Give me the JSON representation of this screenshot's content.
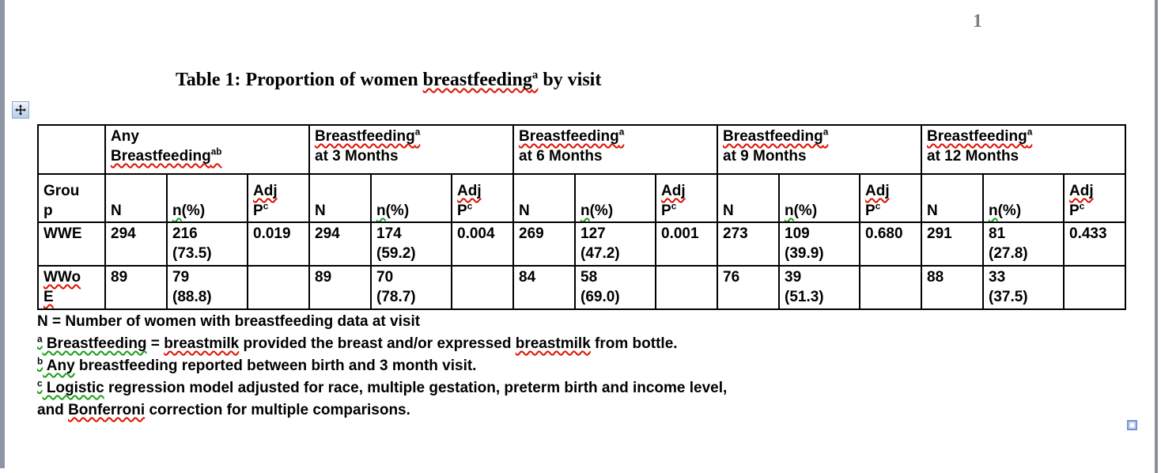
{
  "page": {
    "number": "1"
  },
  "title": {
    "prefix": "Table 1: Proportion of women ",
    "word": "breastfeeding",
    "sup": "a",
    "suffix": " by visit"
  },
  "table": {
    "group_label": "Group",
    "groups": [
      {
        "prefix": "Any",
        "word": "Breastfeeding",
        "sup": "ab",
        "suffix": ""
      },
      {
        "prefix": "",
        "word": "Breastfeeding",
        "sup": "a",
        "suffix": "at 3 Months"
      },
      {
        "prefix": "",
        "word": "Breastfeeding",
        "sup": "a",
        "suffix": "at 6 Months"
      },
      {
        "prefix": "",
        "word": "Breastfeeding",
        "sup": "a",
        "suffix": "at 9 Months"
      },
      {
        "prefix": "",
        "word": "Breastfeeding",
        "sup": "a",
        "suffix": "at 12 Months"
      }
    ],
    "subheader": {
      "n": "N",
      "n_pct_n": "n",
      "n_pct_rest": "(%)",
      "adj": "Adj",
      "p": "P",
      "p_sup": "c"
    },
    "rows": [
      {
        "label": "WWE",
        "cells": [
          "294",
          "216 (73.5)",
          "0.019",
          "294",
          "174 (59.2)",
          "0.004",
          "269",
          "127 (47.2)",
          "0.001",
          "273",
          "109 (39.9)",
          "0.680",
          "291",
          "81 (27.8)",
          "0.433"
        ]
      },
      {
        "label": "WWoE",
        "cells": [
          "89",
          "79 (88.8)",
          "",
          "89",
          "70 (78.7)",
          "",
          "84",
          "58 (69.0)",
          "",
          "76",
          "39 (51.3)",
          "",
          "88",
          "33 (37.5)",
          ""
        ]
      }
    ]
  },
  "footnotes": [
    [
      {
        "t": "N = Number of women with breastfeeding data at visit"
      }
    ],
    [
      {
        "t": "a",
        "sup": true,
        "s": "green"
      },
      {
        "t": " Breastfeeding",
        "s": "green"
      },
      {
        "t": " = "
      },
      {
        "t": "breastmilk",
        "s": "red"
      },
      {
        "t": " provided the breast and/or expressed "
      },
      {
        "t": "breastmilk",
        "s": "red"
      },
      {
        "t": " from bottle."
      }
    ],
    [
      {
        "t": "b",
        "sup": true,
        "s": "green"
      },
      {
        "t": " Any",
        "s": "green"
      },
      {
        "t": " breastfeeding reported between birth and 3 month visit."
      }
    ],
    [
      {
        "t": "c",
        "sup": true,
        "s": "green"
      },
      {
        "t": " Logistic",
        "s": "green"
      },
      {
        "t": " regression model adjusted for race, multiple gestation, preterm birth and income level,"
      }
    ],
    [
      {
        "t": "and "
      },
      {
        "t": "Bonferroni",
        "s": "red"
      },
      {
        "t": " correction for multiple comparisons."
      }
    ]
  ],
  "icons": {
    "table_move_handle": "move-cross-arrows-icon",
    "anchor_marker": "content-anchor-square-icon"
  },
  "colors": {
    "squiggle_red": "#e01000",
    "squiggle_green": "#17a017",
    "page_number_gray": "#7f7f7f",
    "anchor_blue": "#7792d8"
  }
}
